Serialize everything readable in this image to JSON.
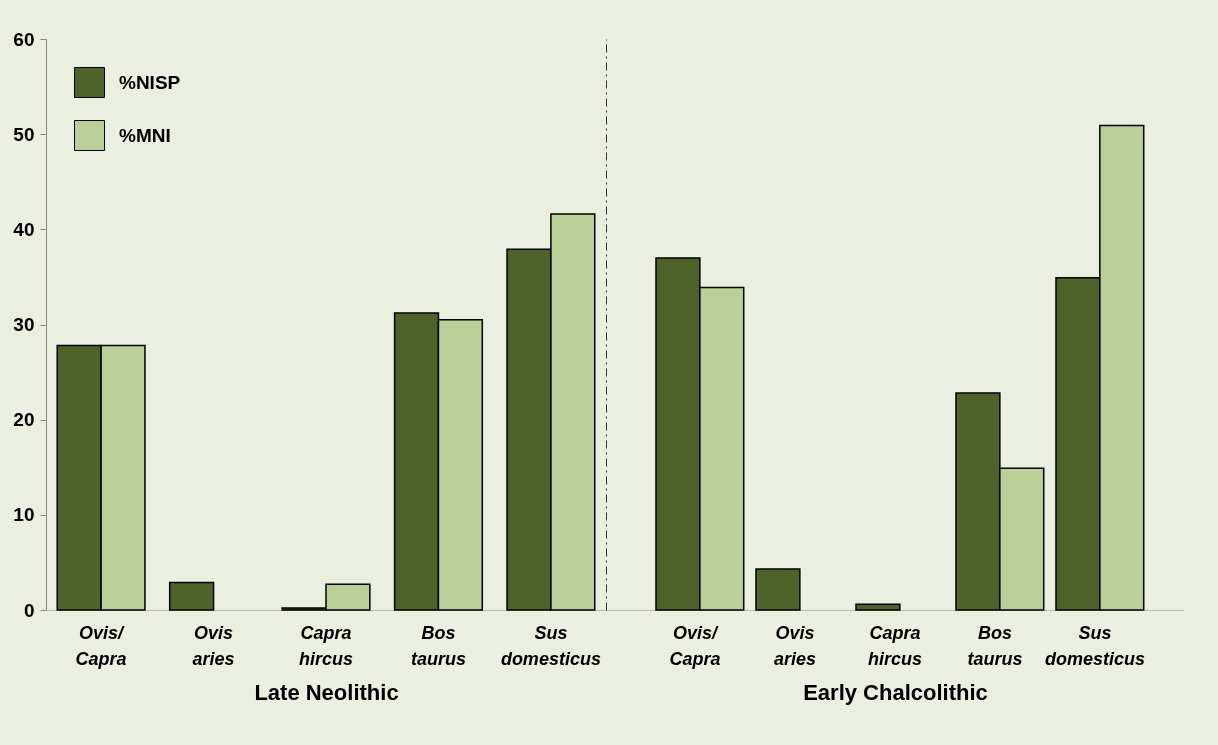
{
  "chart_data": [
    {
      "type": "bar",
      "xlabel": "Late  Neolithic",
      "categories": [
        "Ovis/ Capra",
        "Ovis aries",
        "Capra hircus",
        "Bos taurus",
        "Sus domesticus"
      ],
      "series": [
        {
          "name": "%NISP",
          "color": "#4f6228",
          "values": [
            27.8,
            2.9,
            0.2,
            31.2,
            37.9
          ]
        },
        {
          "name": "%MNI",
          "color": "#bad096",
          "values": [
            27.8,
            null,
            2.7,
            30.5,
            41.6
          ]
        }
      ],
      "ylim": [
        0,
        60
      ],
      "yticks": [
        0,
        10,
        20,
        30,
        40,
        50,
        60
      ],
      "legend": "top left",
      "grid": false
    },
    {
      "type": "bar",
      "xlabel": "Early Chalcolithic",
      "categories": [
        "Ovis/ Capra",
        "Ovis aries",
        "Capra hircus",
        "Bos taurus",
        "Sus domesticus"
      ],
      "series": [
        {
          "name": "%NISP",
          "color": "#4f6228",
          "values": [
            37.0,
            4.3,
            0.6,
            22.8,
            34.9
          ]
        },
        {
          "name": "%MNI",
          "color": "#bad096",
          "values": [
            33.9,
            null,
            null,
            14.9,
            50.9
          ]
        }
      ],
      "ylim": [
        0,
        60
      ],
      "yticks": [
        0,
        10,
        20,
        30,
        40,
        50,
        60
      ],
      "tick_labels": "x",
      "grid": false
    }
  ]
}
